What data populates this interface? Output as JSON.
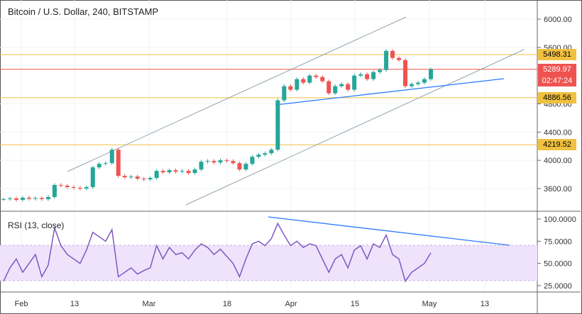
{
  "header": {
    "title": "Bitcoin / U.S. Dollar, 240, BITSTAMP"
  },
  "rsi": {
    "title": "RSI (13, close)"
  },
  "price_axis": {
    "ticks": [
      "6000.00",
      "5600.00",
      "4800.00",
      "4400.00",
      "4000.00",
      "3600.00"
    ],
    "tick_values": [
      6000,
      5600,
      4800,
      4400,
      4000,
      3600
    ]
  },
  "rsi_axis": {
    "ticks": [
      "100.0000",
      "75.0000",
      "50.0000",
      "25.0000"
    ],
    "tick_values": [
      100,
      75,
      50,
      25
    ]
  },
  "time_axis": {
    "labels": [
      "Feb",
      "13",
      "Mar",
      "18",
      "Apr",
      "15",
      "May",
      "13"
    ]
  },
  "levels": [
    {
      "label": "5498.31",
      "value": 5498.31,
      "color": "#f0c040"
    },
    {
      "label": "5289.97",
      "value": 5289.97,
      "color": "#ef5350"
    },
    {
      "label": "4886.56",
      "value": 4886.56,
      "color": "#f0c040"
    },
    {
      "label": "4219.52",
      "value": 4219.52,
      "color": "#f0c040"
    }
  ],
  "countdown": "02:47:24",
  "colors": {
    "up": "#26a69a",
    "down": "#ef5350",
    "rsi": "#7e57c2",
    "trend": "#2979ff",
    "channel": "#90a4ae"
  },
  "chart_data": {
    "type": "candlestick",
    "closes": [
      3450,
      3460,
      3440,
      3470,
      3455,
      3465,
      3450,
      3480,
      3650,
      3640,
      3620,
      3610,
      3600,
      3620,
      3900,
      3950,
      3960,
      4150,
      3780,
      3760,
      3770,
      3740,
      3730,
      3750,
      3850,
      3830,
      3860,
      3840,
      3850,
      3820,
      3870,
      3980,
      3990,
      3970,
      4000,
      3990,
      3960,
      3870,
      3950,
      4050,
      4080,
      4100,
      4150,
      4850,
      5050,
      5000,
      5150,
      5100,
      5200,
      5180,
      5120,
      4950,
      5050,
      5080,
      5000,
      5200,
      5220,
      5150,
      5250,
      5280,
      5550,
      5450,
      5420,
      5050,
      5080,
      5100,
      5150,
      5290
    ],
    "rsi": [
      30,
      45,
      55,
      40,
      50,
      60,
      35,
      48,
      90,
      70,
      60,
      55,
      50,
      65,
      85,
      80,
      75,
      88,
      35,
      40,
      45,
      38,
      42,
      45,
      70,
      55,
      68,
      60,
      62,
      55,
      65,
      72,
      68,
      60,
      66,
      58,
      50,
      35,
      55,
      72,
      75,
      70,
      78,
      95,
      82,
      70,
      75,
      68,
      72,
      70,
      55,
      40,
      55,
      60,
      45,
      65,
      70,
      55,
      72,
      68,
      82,
      60,
      55,
      30,
      40,
      45,
      50,
      62
    ]
  }
}
